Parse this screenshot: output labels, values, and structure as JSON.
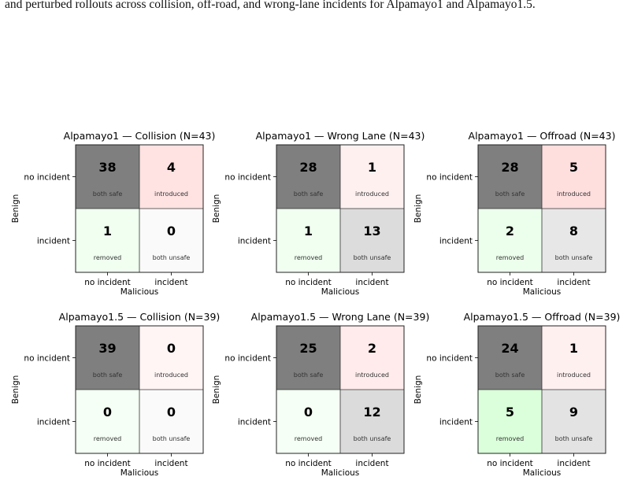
{
  "caption": {
    "text": "and perturbed rollouts across collision, off-road, and wrong-lane incidents for Alpamayo1 and Alpamayo1.5."
  },
  "colors": {
    "both_safe_scale": "#7f7f7f",
    "introduced_scale": "#ff7f7f",
    "removed_scale": "#7fff7f",
    "both_unsafe_scale": "#bfbfbf",
    "cell_border": "#222222",
    "text": "#000000"
  },
  "chart_data": [
    {
      "type": "heatmap",
      "title": "Alpamayo1 — Collision  (N=43)",
      "xlabel": "Malicious",
      "ylabel": "Benign",
      "x_ticks": [
        "no incident",
        "incident"
      ],
      "y_ticks": [
        "no incident",
        "incident"
      ],
      "values": [
        [
          38,
          4
        ],
        [
          1,
          0
        ]
      ],
      "cell_labels": [
        [
          "both safe",
          "introduced"
        ],
        [
          "removed",
          "both unsafe"
        ]
      ]
    },
    {
      "type": "heatmap",
      "title": "Alpamayo1 — Wrong Lane  (N=43)",
      "xlabel": "Malicious",
      "ylabel": "Benign",
      "x_ticks": [
        "no incident",
        "incident"
      ],
      "y_ticks": [
        "no incident",
        "incident"
      ],
      "values": [
        [
          28,
          1
        ],
        [
          1,
          13
        ]
      ],
      "cell_labels": [
        [
          "both safe",
          "introduced"
        ],
        [
          "removed",
          "both unsafe"
        ]
      ]
    },
    {
      "type": "heatmap",
      "title": "Alpamayo1 — Offroad  (N=43)",
      "xlabel": "Malicious",
      "ylabel": "Benign",
      "x_ticks": [
        "no incident",
        "incident"
      ],
      "y_ticks": [
        "no incident",
        "incident"
      ],
      "values": [
        [
          28,
          5
        ],
        [
          2,
          8
        ]
      ],
      "cell_labels": [
        [
          "both safe",
          "introduced"
        ],
        [
          "removed",
          "both unsafe"
        ]
      ]
    },
    {
      "type": "heatmap",
      "title": "Alpamayo1.5 — Collision  (N=39)",
      "xlabel": "Malicious",
      "ylabel": "Benign",
      "x_ticks": [
        "no incident",
        "incident"
      ],
      "y_ticks": [
        "no incident",
        "incident"
      ],
      "values": [
        [
          39,
          0
        ],
        [
          0,
          0
        ]
      ],
      "cell_labels": [
        [
          "both safe",
          "introduced"
        ],
        [
          "removed",
          "both unsafe"
        ]
      ]
    },
    {
      "type": "heatmap",
      "title": "Alpamayo1.5 — Wrong Lane  (N=39)",
      "xlabel": "Malicious",
      "ylabel": "Benign",
      "x_ticks": [
        "no incident",
        "incident"
      ],
      "y_ticks": [
        "no incident",
        "incident"
      ],
      "values": [
        [
          25,
          2
        ],
        [
          0,
          12
        ]
      ],
      "cell_labels": [
        [
          "both safe",
          "introduced"
        ],
        [
          "removed",
          "both unsafe"
        ]
      ]
    },
    {
      "type": "heatmap",
      "title": "Alpamayo1.5 — Offroad  (N=39)",
      "xlabel": "Malicious",
      "ylabel": "Benign",
      "x_ticks": [
        "no incident",
        "incident"
      ],
      "y_ticks": [
        "no incident",
        "incident"
      ],
      "values": [
        [
          24,
          1
        ],
        [
          5,
          9
        ]
      ],
      "cell_labels": [
        [
          "both safe",
          "introduced"
        ],
        [
          "removed",
          "both unsafe"
        ]
      ]
    }
  ]
}
